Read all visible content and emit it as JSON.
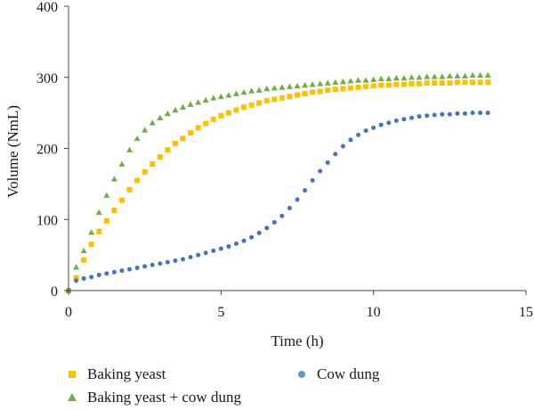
{
  "chart_data": {
    "type": "scatter",
    "xlabel": "Time (h)",
    "ylabel": "Volume (NmL)",
    "xlim": [
      0,
      15
    ],
    "ylim": [
      0,
      400
    ],
    "xticks": [
      "0",
      "5",
      "10",
      "15"
    ],
    "yticks": [
      "0",
      "100",
      "200",
      "300",
      "400"
    ],
    "grid": false,
    "legend_position": "bottom",
    "series": [
      {
        "name": "Baking yeast",
        "marker": "square",
        "color": "#FFC000",
        "x": [
          0,
          0.25,
          0.5,
          0.75,
          1,
          1.25,
          1.5,
          1.75,
          2,
          2.25,
          2.5,
          2.75,
          3,
          3.25,
          3.5,
          3.75,
          4,
          4.25,
          4.5,
          4.75,
          5,
          5.25,
          5.5,
          5.75,
          6,
          6.25,
          6.5,
          6.75,
          7,
          7.25,
          7.5,
          7.75,
          8,
          8.25,
          8.5,
          8.75,
          9,
          9.25,
          9.5,
          9.75,
          10,
          10.25,
          10.5,
          10.75,
          11,
          11.25,
          11.5,
          11.75,
          12,
          12.25,
          12.5,
          12.75,
          13,
          13.25,
          13.5,
          13.75
        ],
        "y": [
          0,
          18,
          43,
          65,
          83,
          98,
          113,
          127,
          142,
          155,
          167,
          178,
          188,
          198,
          207,
          214,
          222,
          229,
          235,
          241,
          246,
          250,
          254,
          258,
          261,
          264,
          267,
          269,
          271,
          273,
          275,
          277,
          279,
          280,
          282,
          283,
          284,
          285,
          286,
          287,
          288,
          289,
          289,
          290,
          290,
          291,
          291,
          292,
          292,
          292,
          292,
          293,
          293,
          293,
          293,
          293
        ]
      },
      {
        "name": "Cow dung",
        "marker": "circle",
        "color": "#4472C4",
        "x": [
          0,
          0.25,
          0.5,
          0.75,
          1,
          1.25,
          1.5,
          1.75,
          2,
          2.25,
          2.5,
          2.75,
          3,
          3.25,
          3.5,
          3.75,
          4,
          4.25,
          4.5,
          4.75,
          5,
          5.25,
          5.5,
          5.75,
          6,
          6.25,
          6.5,
          6.75,
          7,
          7.25,
          7.5,
          7.75,
          8,
          8.25,
          8.5,
          8.75,
          9,
          9.25,
          9.5,
          9.75,
          10,
          10.25,
          10.5,
          10.75,
          11,
          11.25,
          11.5,
          11.75,
          12,
          12.25,
          12.5,
          12.75,
          13,
          13.25,
          13.5,
          13.75
        ],
        "y": [
          0,
          14,
          17,
          19,
          22,
          24,
          26,
          28,
          30,
          32,
          34,
          36,
          38,
          40,
          42,
          44,
          47,
          50,
          53,
          56,
          59,
          62,
          66,
          70,
          75,
          81,
          88,
          96,
          105,
          116,
          128,
          141,
          155,
          168,
          180,
          192,
          203,
          212,
          219,
          225,
          229,
          233,
          236,
          239,
          241,
          243,
          245,
          246,
          247,
          248,
          248,
          249,
          249,
          250,
          250,
          250
        ]
      },
      {
        "name": "Baking yeast + cow dung",
        "marker": "triangle",
        "color": "#70AD47",
        "x": [
          0,
          0.25,
          0.5,
          0.75,
          1,
          1.25,
          1.5,
          1.75,
          2,
          2.25,
          2.5,
          2.75,
          3,
          3.25,
          3.5,
          3.75,
          4,
          4.25,
          4.5,
          4.75,
          5,
          5.25,
          5.5,
          5.75,
          6,
          6.25,
          6.5,
          6.75,
          7,
          7.25,
          7.5,
          7.75,
          8,
          8.25,
          8.5,
          8.75,
          9,
          9.25,
          9.5,
          9.75,
          10,
          10.25,
          10.5,
          10.75,
          11,
          11.25,
          11.5,
          11.75,
          12,
          12.25,
          12.5,
          12.75,
          13,
          13.25,
          13.5,
          13.75
        ],
        "y": [
          0,
          33,
          56,
          82,
          110,
          134,
          157,
          178,
          198,
          214,
          226,
          236,
          243,
          249,
          254,
          258,
          262,
          265,
          268,
          271,
          273,
          275,
          277,
          279,
          281,
          282,
          284,
          285,
          286,
          287,
          288,
          289,
          290,
          291,
          292,
          293,
          294,
          295,
          296,
          296,
          297,
          298,
          298,
          299,
          299,
          300,
          300,
          301,
          301,
          301,
          302,
          302,
          302,
          303,
          303,
          303
        ]
      }
    ]
  }
}
